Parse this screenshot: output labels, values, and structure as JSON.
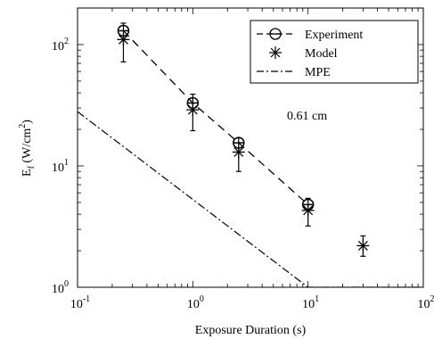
{
  "chart_data": {
    "type": "scatter",
    "title": "",
    "xlabel": "Exposure Duration (s)",
    "ylabel": {
      "base": "E",
      "sub": "f",
      "unit_pre": " (W/cm",
      "unit_sup": "2",
      "unit_post": ")"
    },
    "xscale": "log",
    "yscale": "log",
    "xlim": [
      0.1,
      100
    ],
    "ylim": [
      1,
      200
    ],
    "xticks": [
      {
        "value": 0.1,
        "base": "10",
        "exp": "-1"
      },
      {
        "value": 1,
        "base": "10",
        "exp": "0"
      },
      {
        "value": 10,
        "base": "10",
        "exp": "1"
      },
      {
        "value": 100,
        "base": "10",
        "exp": "2"
      }
    ],
    "yticks": [
      {
        "value": 1,
        "base": "10",
        "exp": "0"
      },
      {
        "value": 10,
        "base": "10",
        "exp": "1"
      },
      {
        "value": 100,
        "base": "10",
        "exp": "2"
      }
    ],
    "annotation": "0.61 cm",
    "legend_position": "top-right",
    "series": [
      {
        "name": "Experiment",
        "marker": "circle-bar",
        "line": "dashed",
        "points": [
          [
            0.25,
            130
          ],
          [
            1.0,
            33
          ],
          [
            2.5,
            15.5
          ],
          [
            10,
            4.8
          ]
        ]
      },
      {
        "name": "Model",
        "marker": "asterisk",
        "line": "none",
        "points": [
          {
            "x": 0.25,
            "y": 110,
            "lo": 72,
            "hi": 150
          },
          {
            "x": 1.0,
            "y": 29,
            "lo": 19.5,
            "hi": 39
          },
          {
            "x": 2.5,
            "y": 13,
            "lo": 9,
            "hi": 17
          },
          {
            "x": 10,
            "y": 4.3,
            "lo": 3.2,
            "hi": 5.4
          },
          {
            "x": 30,
            "y": 2.2,
            "lo": 1.8,
            "hi": 2.65
          }
        ]
      },
      {
        "name": "MPE",
        "marker": "none",
        "line": "dashdot",
        "points": [
          [
            0.1,
            28
          ],
          [
            10,
            1.0
          ],
          [
            100,
            1.0
          ]
        ]
      }
    ]
  }
}
